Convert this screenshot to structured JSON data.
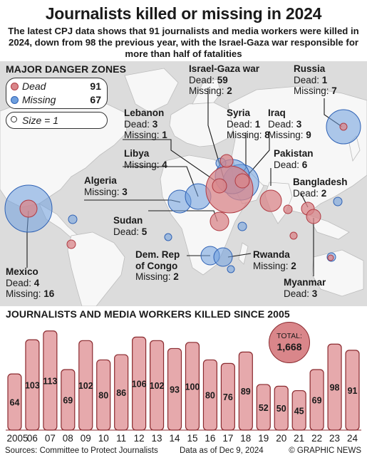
{
  "header": {
    "title": "Journalists killed or missing in 2024",
    "subtitle": "The latest CPJ data shows that 91 journalists and media workers were killed in 2024, down from 98 the previous year, with the Israel-Gaza war responsible for more than half of fatalities"
  },
  "map": {
    "section_title": "MAJOR DANGER ZONES",
    "legend": {
      "dead_label": "Dead",
      "dead_value": "91",
      "missing_label": "Missing",
      "missing_value": "67",
      "size_label": "Size = 1"
    },
    "colors": {
      "dead": "#d9868a",
      "dead_stroke": "#b03a42",
      "missing": "#6e9fde",
      "missing_stroke": "#2f62b5"
    },
    "zones": [
      {
        "name": "Israel-Gaza war",
        "l1": "Dead: ",
        "v1": "59",
        "l2": "Missing: ",
        "v2": "2"
      },
      {
        "name": "Russia",
        "l1": "Dead: ",
        "v1": "1",
        "l2": "Missing: ",
        "v2": "7"
      },
      {
        "name": "Lebanon",
        "l1": "Dead: ",
        "v1": "3",
        "l2": "Missing: ",
        "v2": "1"
      },
      {
        "name": "Syria",
        "l1": "Dead: ",
        "v1": "1",
        "l2": "Missing: ",
        "v2": "8"
      },
      {
        "name": "Iraq",
        "l1": "Dead: ",
        "v1": "3",
        "l2": "Missing: ",
        "v2": "9"
      },
      {
        "name": "Libya",
        "l1": "Missing: ",
        "v1": "4"
      },
      {
        "name": "Pakistan",
        "l1": "Dead: ",
        "v1": "6"
      },
      {
        "name": "Algeria",
        "l1": "Missing: ",
        "v1": "3"
      },
      {
        "name": "Bangladesh",
        "l1": "Dead: ",
        "v1": "2"
      },
      {
        "name": "Sudan",
        "l1": "Dead: ",
        "v1": "5"
      },
      {
        "name": "Dem. Rep",
        "name2": "of Congo",
        "l1": "Missing: ",
        "v1": "2"
      },
      {
        "name": "Rwanda",
        "l1": "Missing: ",
        "v1": "2"
      },
      {
        "name": "Mexico",
        "l1": "Dead: ",
        "v1": "4",
        "l2": "Missing: ",
        "v2": "16"
      },
      {
        "name": "Myanmar",
        "l1": "Dead: ",
        "v1": "3"
      }
    ]
  },
  "chart_data": {
    "type": "bar",
    "title": "JOURNALISTS AND MEDIA WORKERS KILLED SINCE 2005",
    "categories": [
      "2005",
      "06",
      "07",
      "08",
      "09",
      "10",
      "11",
      "12",
      "13",
      "14",
      "15",
      "16",
      "17",
      "18",
      "19",
      "20",
      "21",
      "22",
      "23",
      "24"
    ],
    "values": [
      64,
      103,
      113,
      69,
      102,
      80,
      86,
      106,
      102,
      93,
      100,
      80,
      76,
      89,
      52,
      50,
      45,
      69,
      98,
      91
    ],
    "total_label": "TOTAL:",
    "total_value": "1,668",
    "ylim": [
      0,
      125
    ],
    "bar_color": "#e6a9ac",
    "bar_stroke": "#8a2a2f"
  },
  "footer": {
    "source": "Sources: Committee to Protect Journalists",
    "date": "Data as of Dec 9, 2024",
    "credit": "© GRAPHIC NEWS"
  }
}
